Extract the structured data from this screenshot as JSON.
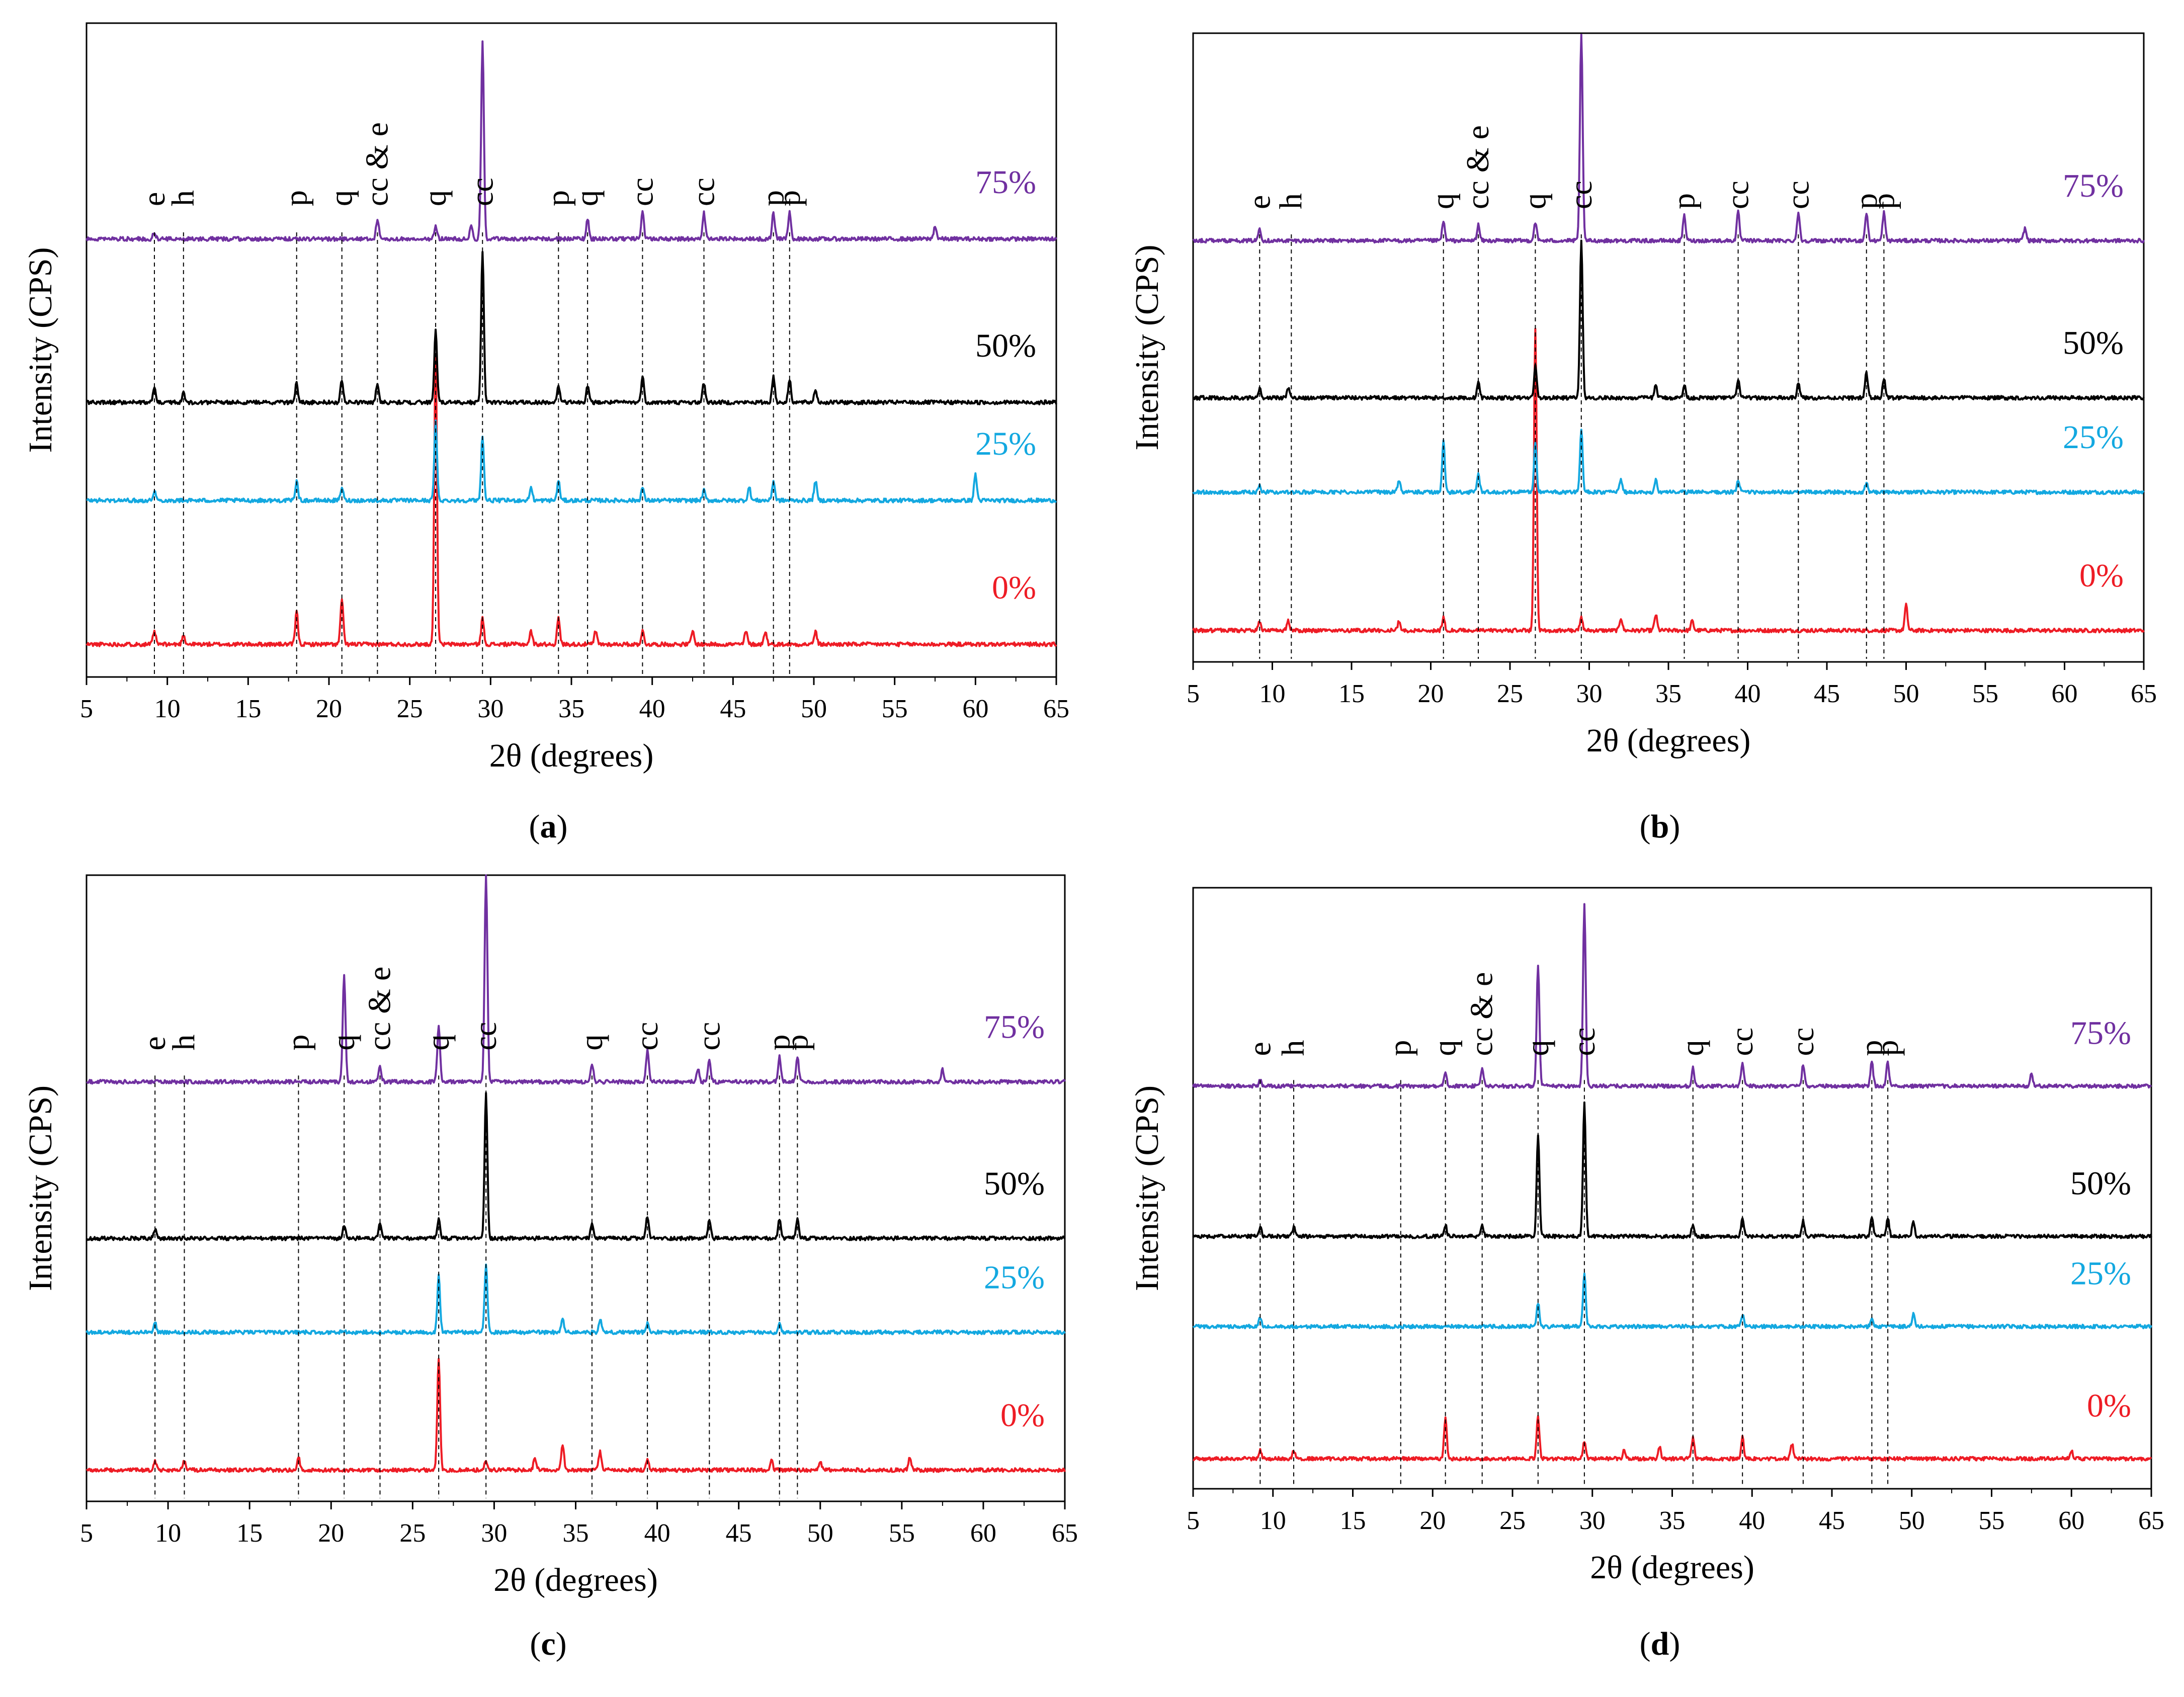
{
  "chart_data": [
    {
      "type": "line",
      "caption_letter": "a",
      "xlabel": "2θ (degrees)",
      "ylabel": "Intensity (CPS)",
      "xlim": [
        5,
        65
      ],
      "xticks": [
        5,
        10,
        15,
        20,
        25,
        30,
        35,
        40,
        45,
        50,
        55,
        60,
        65
      ],
      "peak_markers": [
        {
          "x": 9.2,
          "label": "e"
        },
        {
          "x": 11.0,
          "label": "h"
        },
        {
          "x": 18.0,
          "label": "p"
        },
        {
          "x": 20.8,
          "label": "q"
        },
        {
          "x": 23.0,
          "label": "cc & e"
        },
        {
          "x": 26.6,
          "label": "q"
        },
        {
          "x": 29.5,
          "label": "cc"
        },
        {
          "x": 34.2,
          "label": "p"
        },
        {
          "x": 36.0,
          "label": "q"
        },
        {
          "x": 39.4,
          "label": "cc"
        },
        {
          "x": 43.2,
          "label": "cc"
        },
        {
          "x": 47.5,
          "label": "p"
        },
        {
          "x": 48.5,
          "label": "p"
        }
      ],
      "series": [
        {
          "name": "0%",
          "color": "#ee1c25",
          "base": 0.05,
          "peaks": [
            [
              9.2,
              0.02
            ],
            [
              11,
              0.015
            ],
            [
              18,
              0.05
            ],
            [
              20.8,
              0.07
            ],
            [
              26.6,
              0.44
            ],
            [
              29.5,
              0.04
            ],
            [
              32.5,
              0.02
            ],
            [
              34.2,
              0.04
            ],
            [
              36.5,
              0.02
            ],
            [
              39.4,
              0.02
            ],
            [
              42.5,
              0.02
            ],
            [
              45.8,
              0.02
            ],
            [
              47,
              0.02
            ],
            [
              50.1,
              0.02
            ]
          ]
        },
        {
          "name": "25%",
          "color": "#13a8e0",
          "base": 0.27,
          "peaks": [
            [
              9.2,
              0.015
            ],
            [
              18,
              0.03
            ],
            [
              20.8,
              0.02
            ],
            [
              26.6,
              0.12
            ],
            [
              29.5,
              0.1
            ],
            [
              32.5,
              0.02
            ],
            [
              34.2,
              0.03
            ],
            [
              39.4,
              0.02
            ],
            [
              43.2,
              0.015
            ],
            [
              46,
              0.02
            ],
            [
              47.5,
              0.03
            ],
            [
              50.1,
              0.03
            ],
            [
              60,
              0.04
            ]
          ]
        },
        {
          "name": "50%",
          "color": "#000000",
          "base": 0.42,
          "peaks": [
            [
              9.2,
              0.02
            ],
            [
              11,
              0.015
            ],
            [
              18,
              0.03
            ],
            [
              20.8,
              0.035
            ],
            [
              23,
              0.03
            ],
            [
              26.6,
              0.11
            ],
            [
              29.5,
              0.23
            ],
            [
              34.2,
              0.025
            ],
            [
              36,
              0.025
            ],
            [
              39.4,
              0.04
            ],
            [
              43.2,
              0.03
            ],
            [
              47.5,
              0.04
            ],
            [
              48.5,
              0.035
            ],
            [
              50.1,
              0.02
            ]
          ]
        },
        {
          "name": "75%",
          "color": "#7030a0",
          "base": 0.67,
          "peaks": [
            [
              9.2,
              0.01
            ],
            [
              23,
              0.03
            ],
            [
              26.6,
              0.02
            ],
            [
              28.8,
              0.02
            ],
            [
              29.5,
              0.3
            ],
            [
              36,
              0.03
            ],
            [
              39.4,
              0.04
            ],
            [
              43.2,
              0.04
            ],
            [
              47.5,
              0.04
            ],
            [
              48.5,
              0.04
            ],
            [
              57.5,
              0.02
            ]
          ]
        }
      ]
    },
    {
      "type": "line",
      "caption_letter": "b",
      "xlabel": "2θ (degrees)",
      "ylabel": "Intensity (CPS)",
      "xlim": [
        5,
        65
      ],
      "xticks": [
        5,
        10,
        15,
        20,
        25,
        30,
        35,
        40,
        45,
        50,
        55,
        60,
        65
      ],
      "peak_markers": [
        {
          "x": 9.2,
          "label": "e"
        },
        {
          "x": 11.2,
          "label": "h"
        },
        {
          "x": 20.8,
          "label": "q"
        },
        {
          "x": 23.0,
          "label": "cc & e"
        },
        {
          "x": 26.6,
          "label": "q"
        },
        {
          "x": 29.5,
          "label": "cc"
        },
        {
          "x": 36.0,
          "label": "p"
        },
        {
          "x": 39.4,
          "label": "cc"
        },
        {
          "x": 43.2,
          "label": "cc"
        },
        {
          "x": 47.5,
          "label": "p"
        },
        {
          "x": 48.6,
          "label": "p"
        }
      ],
      "series": [
        {
          "name": "0%",
          "color": "#ee1c25",
          "base": 0.05,
          "peaks": [
            [
              9.2,
              0.015
            ],
            [
              11,
              0.015
            ],
            [
              18,
              0.015
            ],
            [
              20.8,
              0.02
            ],
            [
              26.6,
              0.48
            ],
            [
              29.5,
              0.02
            ],
            [
              32,
              0.02
            ],
            [
              34.2,
              0.025
            ],
            [
              36.5,
              0.015
            ],
            [
              50,
              0.04
            ]
          ]
        },
        {
          "name": "25%",
          "color": "#13a8e0",
          "base": 0.27,
          "peaks": [
            [
              9.2,
              0.01
            ],
            [
              18,
              0.02
            ],
            [
              20.8,
              0.08
            ],
            [
              23,
              0.03
            ],
            [
              26.6,
              0.08
            ],
            [
              29.5,
              0.1
            ],
            [
              32,
              0.02
            ],
            [
              34.2,
              0.02
            ],
            [
              39.4,
              0.02
            ],
            [
              47.5,
              0.015
            ]
          ]
        },
        {
          "name": "50%",
          "color": "#000000",
          "base": 0.42,
          "peaks": [
            [
              9.2,
              0.015
            ],
            [
              11,
              0.015
            ],
            [
              23,
              0.025
            ],
            [
              26.6,
              0.05
            ],
            [
              29.5,
              0.25
            ],
            [
              34.2,
              0.02
            ],
            [
              36,
              0.02
            ],
            [
              39.4,
              0.03
            ],
            [
              43.2,
              0.025
            ],
            [
              47.5,
              0.04
            ],
            [
              48.6,
              0.03
            ]
          ]
        },
        {
          "name": "75%",
          "color": "#7030a0",
          "base": 0.67,
          "peaks": [
            [
              9.2,
              0.02
            ],
            [
              20.8,
              0.03
            ],
            [
              23,
              0.025
            ],
            [
              26.6,
              0.03
            ],
            [
              29.5,
              0.33
            ],
            [
              36,
              0.04
            ],
            [
              39.4,
              0.045
            ],
            [
              43.2,
              0.045
            ],
            [
              47.5,
              0.045
            ],
            [
              48.6,
              0.045
            ],
            [
              57.5,
              0.02
            ]
          ]
        }
      ]
    },
    {
      "type": "line",
      "caption_letter": "c",
      "xlabel": "2θ (degrees)",
      "ylabel": "Intensity (CPS)",
      "xlim": [
        5,
        65
      ],
      "xticks": [
        5,
        10,
        15,
        20,
        25,
        30,
        35,
        40,
        45,
        50,
        55,
        60,
        65
      ],
      "peak_markers": [
        {
          "x": 9.2,
          "label": "e"
        },
        {
          "x": 11.0,
          "label": "h"
        },
        {
          "x": 18.0,
          "label": "p"
        },
        {
          "x": 20.8,
          "label": "q"
        },
        {
          "x": 23.0,
          "label": "cc & e"
        },
        {
          "x": 26.6,
          "label": "q"
        },
        {
          "x": 29.5,
          "label": "cc"
        },
        {
          "x": 36.0,
          "label": "q"
        },
        {
          "x": 39.4,
          "label": "cc"
        },
        {
          "x": 43.2,
          "label": "cc"
        },
        {
          "x": 47.5,
          "label": "p"
        },
        {
          "x": 48.6,
          "label": "p"
        }
      ],
      "series": [
        {
          "name": "0%",
          "color": "#ee1c25",
          "base": 0.05,
          "peaks": [
            [
              9.2,
              0.015
            ],
            [
              11,
              0.015
            ],
            [
              18,
              0.02
            ],
            [
              26.6,
              0.18
            ],
            [
              29.5,
              0.015
            ],
            [
              32.5,
              0.02
            ],
            [
              34.2,
              0.04
            ],
            [
              36.5,
              0.03
            ],
            [
              39.4,
              0.015
            ],
            [
              47,
              0.015
            ],
            [
              50,
              0.015
            ],
            [
              55.5,
              0.02
            ]
          ]
        },
        {
          "name": "25%",
          "color": "#13a8e0",
          "base": 0.27,
          "peaks": [
            [
              9.2,
              0.015
            ],
            [
              26.6,
              0.09
            ],
            [
              29.5,
              0.11
            ],
            [
              34.2,
              0.02
            ],
            [
              36.5,
              0.02
            ],
            [
              39.4,
              0.015
            ],
            [
              47.5,
              0.015
            ]
          ]
        },
        {
          "name": "50%",
          "color": "#000000",
          "base": 0.42,
          "peaks": [
            [
              9.2,
              0.015
            ],
            [
              20.8,
              0.02
            ],
            [
              23,
              0.025
            ],
            [
              26.6,
              0.03
            ],
            [
              29.5,
              0.23
            ],
            [
              36,
              0.025
            ],
            [
              39.4,
              0.035
            ],
            [
              43.2,
              0.03
            ],
            [
              47.5,
              0.03
            ],
            [
              48.6,
              0.03
            ]
          ]
        },
        {
          "name": "75%",
          "color": "#7030a0",
          "base": 0.67,
          "peaks": [
            [
              20.8,
              0.17
            ],
            [
              23,
              0.025
            ],
            [
              26.6,
              0.09
            ],
            [
              29.5,
              0.33
            ],
            [
              36,
              0.03
            ],
            [
              39.4,
              0.05
            ],
            [
              42.5,
              0.02
            ],
            [
              43.2,
              0.035
            ],
            [
              47.5,
              0.04
            ],
            [
              48.6,
              0.04
            ],
            [
              57.5,
              0.02
            ]
          ]
        }
      ]
    },
    {
      "type": "line",
      "caption_letter": "d",
      "xlabel": "2θ (degrees)",
      "ylabel": "Intensity (CPS)",
      "xlim": [
        5,
        65
      ],
      "xticks": [
        5,
        10,
        15,
        20,
        25,
        30,
        35,
        40,
        45,
        50,
        55,
        60,
        65
      ],
      "peak_markers": [
        {
          "x": 9.2,
          "label": "e"
        },
        {
          "x": 11.3,
          "label": "h"
        },
        {
          "x": 18.0,
          "label": "p"
        },
        {
          "x": 20.8,
          "label": "q"
        },
        {
          "x": 23.1,
          "label": "cc & e"
        },
        {
          "x": 26.6,
          "label": "q"
        },
        {
          "x": 29.5,
          "label": "cc"
        },
        {
          "x": 36.3,
          "label": "q"
        },
        {
          "x": 39.4,
          "label": "cc"
        },
        {
          "x": 43.2,
          "label": "cc"
        },
        {
          "x": 47.5,
          "label": "p"
        },
        {
          "x": 48.5,
          "label": "p"
        }
      ],
      "series": [
        {
          "name": "0%",
          "color": "#ee1c25",
          "base": 0.05,
          "peaks": [
            [
              9.2,
              0.015
            ],
            [
              11.3,
              0.015
            ],
            [
              20.8,
              0.07
            ],
            [
              26.6,
              0.07
            ],
            [
              29.5,
              0.03
            ],
            [
              32,
              0.015
            ],
            [
              34.2,
              0.02
            ],
            [
              36.3,
              0.035
            ],
            [
              39.4,
              0.035
            ],
            [
              42.5,
              0.025
            ],
            [
              60,
              0.015
            ]
          ]
        },
        {
          "name": "25%",
          "color": "#13a8e0",
          "base": 0.27,
          "peaks": [
            [
              9.2,
              0.015
            ],
            [
              26.6,
              0.04
            ],
            [
              29.5,
              0.09
            ],
            [
              39.4,
              0.02
            ],
            [
              47.5,
              0.015
            ],
            [
              50.1,
              0.02
            ]
          ]
        },
        {
          "name": "50%",
          "color": "#000000",
          "base": 0.42,
          "peaks": [
            [
              9.2,
              0.015
            ],
            [
              11.3,
              0.015
            ],
            [
              20.8,
              0.02
            ],
            [
              23.1,
              0.02
            ],
            [
              26.6,
              0.17
            ],
            [
              29.5,
              0.22
            ],
            [
              36.3,
              0.02
            ],
            [
              39.4,
              0.03
            ],
            [
              43.2,
              0.025
            ],
            [
              47.5,
              0.03
            ],
            [
              48.5,
              0.03
            ],
            [
              50.1,
              0.025
            ]
          ]
        },
        {
          "name": "75%",
          "color": "#7030a0",
          "base": 0.67,
          "peaks": [
            [
              9.2,
              0.01
            ],
            [
              20.8,
              0.02
            ],
            [
              23.1,
              0.03
            ],
            [
              26.6,
              0.2
            ],
            [
              29.5,
              0.3
            ],
            [
              36.3,
              0.03
            ],
            [
              39.4,
              0.04
            ],
            [
              43.2,
              0.035
            ],
            [
              47.5,
              0.04
            ],
            [
              48.5,
              0.04
            ],
            [
              57.5,
              0.02
            ]
          ]
        }
      ]
    }
  ]
}
